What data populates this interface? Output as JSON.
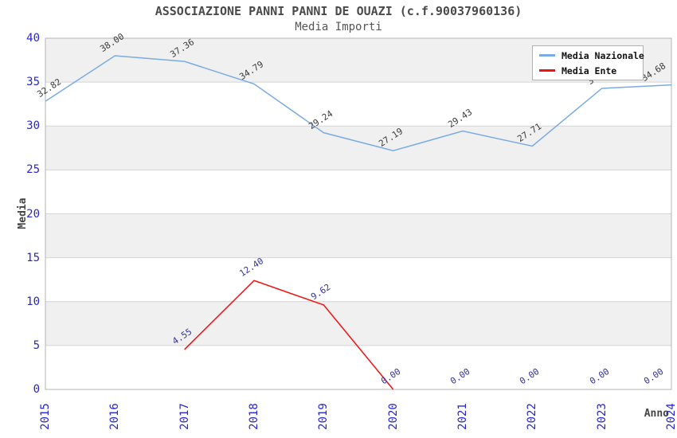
{
  "chart_data": {
    "type": "line",
    "title": "ASSOCIAZIONE PANNI PANNI DE OUAZI (c.f.90037960136)",
    "subtitle": "Media Importi",
    "xlabel": "Anno",
    "ylabel": "Media",
    "ylim": [
      0,
      40
    ],
    "y_ticks": [
      0,
      5,
      10,
      15,
      20,
      25,
      30,
      35,
      40
    ],
    "categories": [
      "2015",
      "2016",
      "2017",
      "2018",
      "2019",
      "2020",
      "2021",
      "2022",
      "2023",
      "2024"
    ],
    "series": [
      {
        "name": "Media Nazionale",
        "color": "#7aabe2",
        "label_color": "#3a3a3a",
        "values": [
          32.82,
          38.0,
          37.36,
          34.79,
          29.24,
          27.19,
          29.43,
          27.71,
          34.29,
          34.68
        ]
      },
      {
        "name": "Media Ente",
        "color": "#f11212",
        "label_color": "#333399",
        "values": [
          null,
          null,
          4.55,
          12.4,
          9.62,
          0.0,
          0.0,
          0.0,
          0.0,
          0.0
        ],
        "line_segment_indices": [
          2,
          5
        ]
      }
    ],
    "legend_position": "top-right",
    "grid": "horizontal gridlines every 5 units, alternating shaded bands",
    "band_color": "#f0f0f0",
    "gridline_color": "#d4d4d4",
    "border_color": "#b4b4b4",
    "tick_label_color": "#2626cc"
  }
}
